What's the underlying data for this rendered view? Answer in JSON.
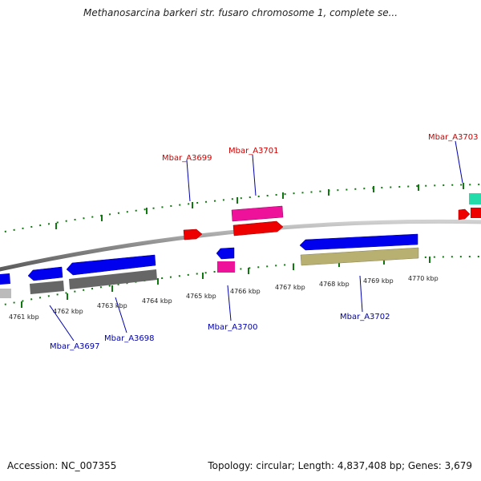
{
  "title": "Methanosarcina barkeri str. fusaro chromosome 1, complete se...",
  "footer": {
    "accession": "Accession: NC_007355",
    "topology": "Topology: circular; Length: 4,837,408 bp; Genes: 3,679"
  },
  "ruler": {
    "labels": [
      "4761 kbp",
      "4762 kbp",
      "4763 kbp",
      "4764 kbp",
      "4765 kbp",
      "4766 kbp",
      "4767 kbp",
      "4768 kbp",
      "4769 kbp",
      "4770 kbp"
    ]
  },
  "genes": {
    "forward": [
      "Mbar_A3699",
      "Mbar_A3701",
      "Mbar_A3703"
    ],
    "reverse": [
      "Mbar_A3697",
      "Mbar_A3698",
      "Mbar_A3700",
      "Mbar_A3702"
    ]
  },
  "colors": {
    "backbone": "#808080",
    "forward_gene": "#ff0000",
    "reverse_gene": "#0000ee",
    "rna_pink": "#ee1199",
    "feature_gray": "#666666",
    "feature_olive": "#b8b070",
    "feature_teal": "#22ddaa",
    "tick_green": "#117711",
    "label_forward": "#cc0000",
    "label_reverse": "#0000aa"
  }
}
